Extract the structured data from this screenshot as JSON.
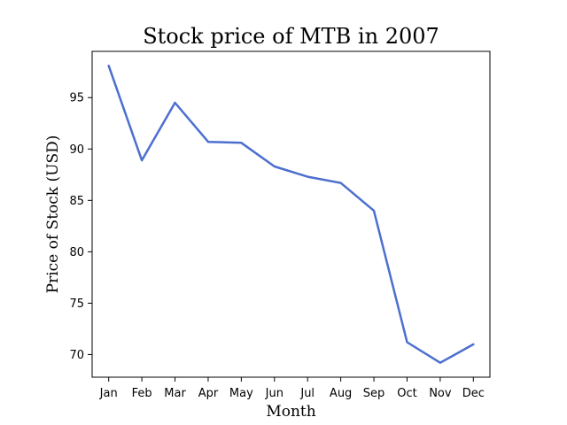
{
  "chart_data": {
    "type": "line",
    "title": "Stock price of MTB in 2007",
    "xlabel": "Month",
    "ylabel": "Price of Stock (USD)",
    "categories": [
      "Jan",
      "Feb",
      "Mar",
      "Apr",
      "May",
      "Jun",
      "Jul",
      "Aug",
      "Sep",
      "Oct",
      "Nov",
      "Dec"
    ],
    "series": [
      {
        "values": [
          98.1,
          88.9,
          94.5,
          90.7,
          90.6,
          88.3,
          87.3,
          86.7,
          84.0,
          71.2,
          69.2,
          71.0
        ],
        "color": "#4c6fcf"
      }
    ],
    "yticks": [
      70,
      75,
      80,
      85,
      90,
      95
    ],
    "ylim": [
      67.8,
      99.5
    ],
    "grid": false,
    "legend": "none"
  }
}
